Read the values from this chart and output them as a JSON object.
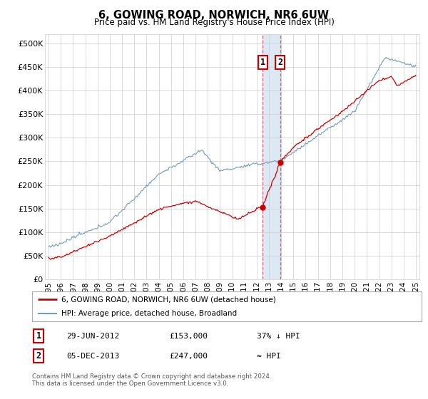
{
  "title": "6, GOWING ROAD, NORWICH, NR6 6UW",
  "subtitle": "Price paid vs. HM Land Registry's House Price Index (HPI)",
  "legend_line1": "6, GOWING ROAD, NORWICH, NR6 6UW (detached house)",
  "legend_line2": "HPI: Average price, detached house, Broadland",
  "transaction1_date": "29-JUN-2012",
  "transaction1_price": "£153,000",
  "transaction1_hpi": "37% ↓ HPI",
  "transaction2_date": "05-DEC-2013",
  "transaction2_price": "£247,000",
  "transaction2_hpi": "≈ HPI",
  "footnote1": "Contains HM Land Registry data © Crown copyright and database right 2024.",
  "footnote2": "This data is licensed under the Open Government Licence v3.0.",
  "red_color": "#cc0000",
  "blue_color": "#7799bb",
  "highlight_color": "#dde8f5",
  "vline_color": "#cc6677",
  "ylim_max": 520000,
  "ylim_min": 0,
  "x_start_year": 1995,
  "x_end_year": 2025,
  "transaction1_year": 2012.49,
  "transaction2_year": 2013.92,
  "transaction1_price_val": 153000,
  "transaction2_price_val": 247000
}
